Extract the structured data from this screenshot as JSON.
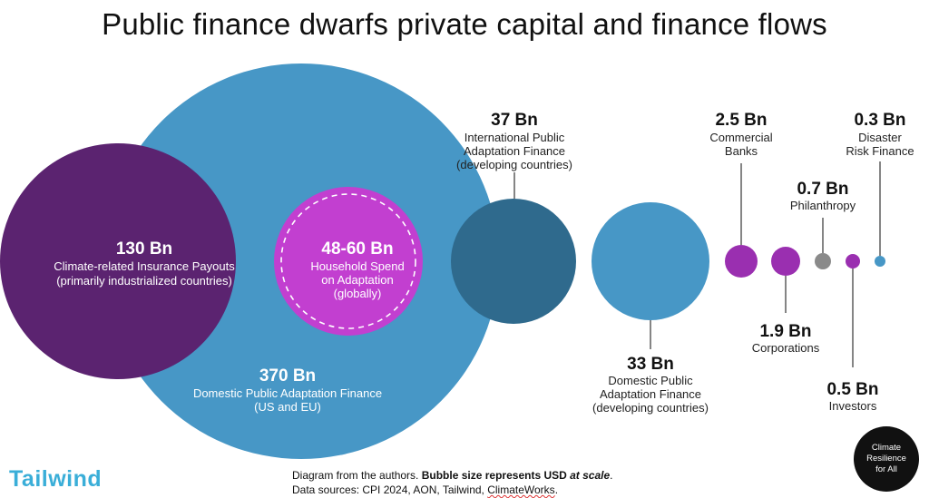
{
  "title": "Public finance dwarfs private capital and finance flows",
  "chart_data": {
    "type": "bubble",
    "unit": "USD Bn",
    "bubbles": [
      {
        "id": "domestic-public-us-eu",
        "value": "370 Bn",
        "amount": 370,
        "label": [
          "Domestic Public Adaptation Finance",
          "(US and EU)"
        ],
        "color": "#4797c6"
      },
      {
        "id": "insurance-payouts",
        "value": "130 Bn",
        "amount": 130,
        "label": [
          "Climate-related Insurance Payouts",
          "(primarily industrialized countries)"
        ],
        "color": "#5b2370"
      },
      {
        "id": "household-spend",
        "value": "48-60 Bn",
        "amount": 54,
        "label": [
          "Household Spend",
          "on Adaptation",
          "(globally)"
        ],
        "color": "#c23fd0"
      },
      {
        "id": "international-public",
        "value": "37 Bn",
        "amount": 37,
        "label": [
          "International Public",
          "Adaptation Finance",
          "(developing countries)"
        ],
        "color": "#2f6a8d"
      },
      {
        "id": "domestic-public-developing",
        "value": "33 Bn",
        "amount": 33,
        "label": [
          "Domestic Public",
          "Adaptation Finance",
          "(developing countries)"
        ],
        "color": "#4797c6"
      },
      {
        "id": "commercial-banks",
        "value": "2.5 Bn",
        "amount": 2.5,
        "label": [
          "Commercial",
          "Banks"
        ],
        "color": "#9a2fb0"
      },
      {
        "id": "corporations",
        "value": "1.9 Bn",
        "amount": 1.9,
        "label": [
          "Corporations"
        ],
        "color": "#9a2fb0"
      },
      {
        "id": "philanthropy",
        "value": "0.7 Bn",
        "amount": 0.7,
        "label": [
          "Philanthropy"
        ],
        "color": "#8a8a8a"
      },
      {
        "id": "investors",
        "value": "0.5 Bn",
        "amount": 0.5,
        "label": [
          "Investors"
        ],
        "color": "#9a2fb0"
      },
      {
        "id": "disaster-risk-finance",
        "value": "0.3 Bn",
        "amount": 0.3,
        "label": [
          "Disaster",
          "Risk Finance"
        ],
        "color": "#4797c6"
      }
    ]
  },
  "logo": "Tailwind",
  "footer": {
    "line1_prefix": "Diagram from the authors. ",
    "line1_bold": "Bubble size represents USD ",
    "line1_italic": "at scale",
    "line1_end": ".",
    "line2_prefix": "Data sources: CPI 2024, AON, Tailwind, ",
    "line2_underlined": "ClimateWorks",
    "line2_end": "."
  },
  "badge": [
    "Climate",
    "Resilience",
    "for All"
  ]
}
